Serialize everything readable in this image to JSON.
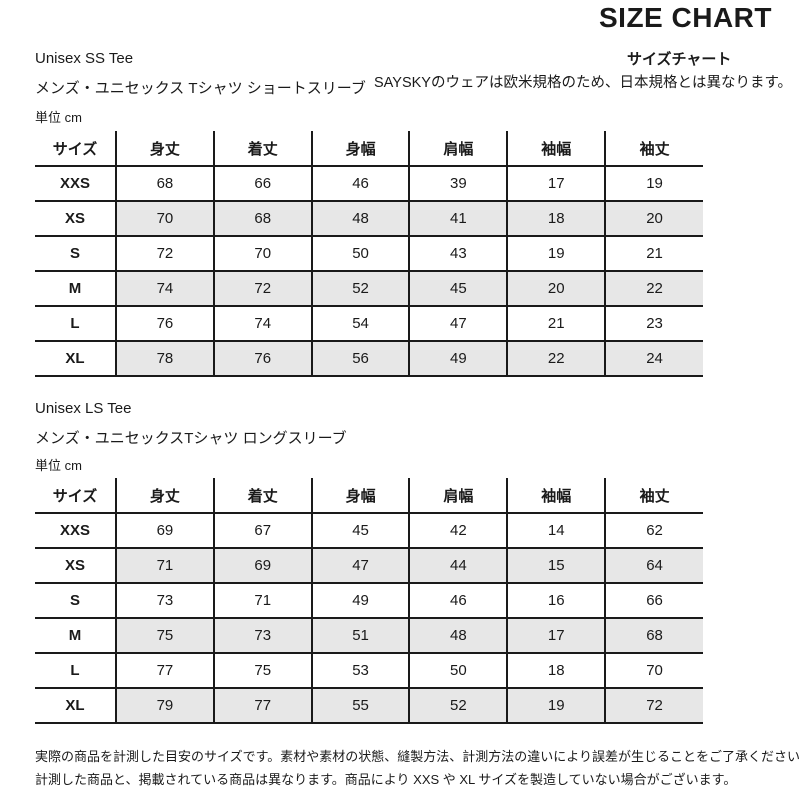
{
  "page": {
    "title": "SIZE CHART",
    "subtitle_jp": "サイズチャート",
    "subtitle_note": "SAYSKYのウェアは欧米規格のため、日本規格とは異なります。"
  },
  "sections": [
    {
      "name_en": "Unisex SS Tee",
      "name_jp": "メンズ・ユニセックス Tシャツ ショートスリーブ",
      "unit_label": "単位 cm",
      "table": {
        "headers": [
          "サイズ",
          "身丈",
          "着丈",
          "身幅",
          "肩幅",
          "袖幅",
          "袖丈"
        ],
        "rows": [
          {
            "size": "XXS",
            "values": [
              68,
              66,
              46,
              39,
              17,
              19
            ]
          },
          {
            "size": "XS",
            "values": [
              70,
              68,
              48,
              41,
              18,
              20
            ]
          },
          {
            "size": "S",
            "values": [
              72,
              70,
              50,
              43,
              19,
              21
            ]
          },
          {
            "size": "M",
            "values": [
              74,
              72,
              52,
              45,
              20,
              22
            ]
          },
          {
            "size": "L",
            "values": [
              76,
              74,
              54,
              47,
              21,
              23
            ]
          },
          {
            "size": "XL",
            "values": [
              78,
              76,
              56,
              49,
              22,
              24
            ]
          }
        ]
      }
    },
    {
      "name_en": "Unisex LS Tee",
      "name_jp": "メンズ・ユニセックスTシャツ ロングスリーブ",
      "unit_label": "単位 cm",
      "table": {
        "headers": [
          "サイズ",
          "身丈",
          "着丈",
          "身幅",
          "肩幅",
          "袖幅",
          "袖丈"
        ],
        "rows": [
          {
            "size": "XXS",
            "values": [
              69,
              67,
              45,
              42,
              14,
              62
            ]
          },
          {
            "size": "XS",
            "values": [
              71,
              69,
              47,
              44,
              15,
              64
            ]
          },
          {
            "size": "S",
            "values": [
              73,
              71,
              49,
              46,
              16,
              66
            ]
          },
          {
            "size": "M",
            "values": [
              75,
              73,
              51,
              48,
              17,
              68
            ]
          },
          {
            "size": "L",
            "values": [
              77,
              75,
              53,
              50,
              18,
              70
            ]
          },
          {
            "size": "XL",
            "values": [
              79,
              77,
              55,
              52,
              19,
              72
            ]
          }
        ]
      }
    }
  ],
  "footer": {
    "line1": "実際の商品を計測した目安のサイズです。素材や素材の状態、縫製方法、計測方法の違いにより誤差が生じることをご了承ください。",
    "line2": "計測した商品と、掲載されている商品は異なります。商品により XXS や XL サイズを製造していない場合がございます。"
  },
  "colors": {
    "text": "#1a1a1a",
    "border": "#1a1a1a",
    "row_alt_background": "#e7e7e7"
  }
}
